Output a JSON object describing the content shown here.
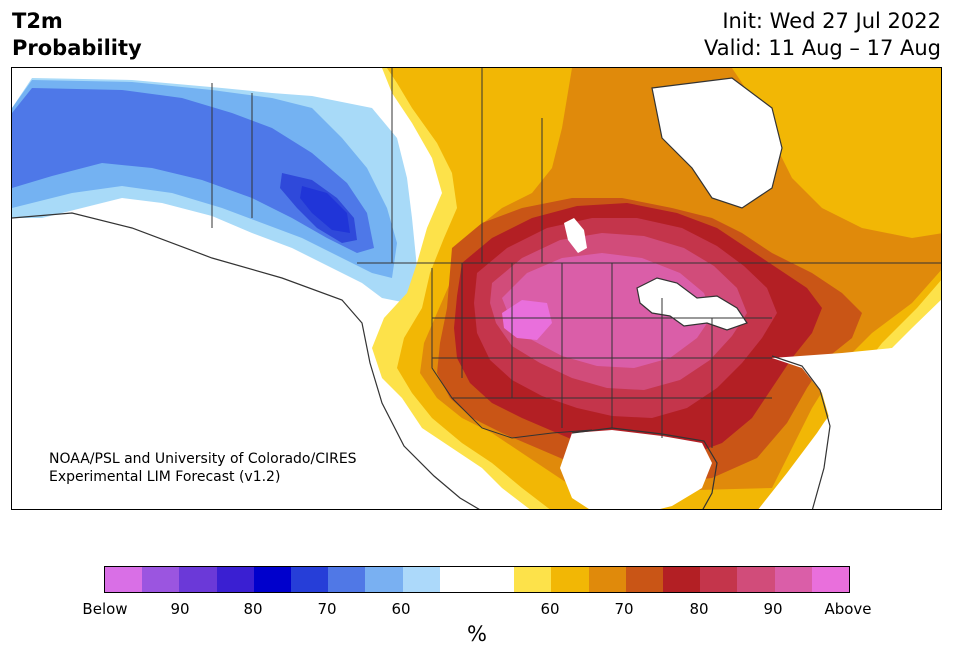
{
  "header": {
    "title_line1": "T2m",
    "title_line2": "Probability",
    "init": "Init: Wed 27 Jul 2022",
    "valid": "Valid: 11 Aug – 17 Aug"
  },
  "credit": {
    "line1": "NOAA/PSL and University of Colorado/CIRES",
    "line2": "Experimental LIM Forecast (v1.2)"
  },
  "map": {
    "region": "North America",
    "colors": {
      "land_neutral": "#ffffff",
      "border": "#333333",
      "warm_60": "#fde24a",
      "warm_65": "#f2b705",
      "warm_70": "#e08a0b",
      "warm_75": "#c95516",
      "warm_80": "#b31f24",
      "warm_85": "#c4354b",
      "warm_90": "#d14c7a",
      "warm_95": "#da5ea8",
      "warm_above": "#e96fdc",
      "cold_60": "#a8daf8",
      "cold_65": "#74b2f2",
      "cold_70": "#4e78e8",
      "cold_75": "#2f49da",
      "cold_80": "#2035d8"
    }
  },
  "colorbar": {
    "colors": [
      "#d96fe6",
      "#9b55e0",
      "#6b39d8",
      "#3a1fd2",
      "#0000cc",
      "#263ed8",
      "#5078e6",
      "#79b0f2",
      "#acd9fa",
      "#ffffff",
      "#ffffff",
      "#fde24a",
      "#f2b705",
      "#e08a0b",
      "#c95516",
      "#b31f24",
      "#c4354b",
      "#d14c7a",
      "#da5ea8",
      "#e96fdc"
    ],
    "labels": [
      "Below",
      "90",
      "80",
      "70",
      "60",
      "60",
      "70",
      "80",
      "90",
      "Above"
    ],
    "unit": "%"
  }
}
